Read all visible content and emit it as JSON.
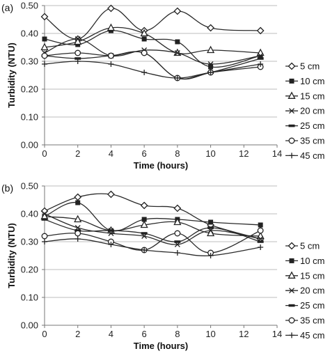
{
  "chart_data": [
    {
      "type": "line",
      "panel_label": "(a)",
      "xlabel": "Time (hours)",
      "ylabel": "Turbidity  (NTU)",
      "xlim": [
        0,
        14
      ],
      "ylim": [
        0,
        0.5
      ],
      "xticks": [
        "0",
        "2",
        "4",
        "6",
        "8",
        "10",
        "12",
        "14"
      ],
      "yticks": [
        "0.00",
        "0.10",
        "0.20",
        "0.30",
        "0.40",
        "0.50"
      ],
      "grid": "horizontal",
      "legend_position": "right",
      "x": [
        0,
        2,
        4,
        6,
        8,
        10,
        13
      ],
      "series": [
        {
          "name": "5 cm",
          "marker": "diamond-open",
          "values": [
            0.46,
            0.38,
            0.49,
            0.41,
            0.48,
            0.42,
            0.41
          ]
        },
        {
          "name": "10 cm",
          "marker": "square",
          "values": [
            0.38,
            0.36,
            0.41,
            0.38,
            0.37,
            0.28,
            0.32
          ]
        },
        {
          "name": "15 cm",
          "marker": "triangle-open",
          "values": [
            0.35,
            0.37,
            0.42,
            0.4,
            0.33,
            0.34,
            0.33
          ]
        },
        {
          "name": "20 cm",
          "marker": "x",
          "values": [
            0.33,
            0.38,
            0.32,
            0.34,
            0.33,
            0.29,
            0.32
          ]
        },
        {
          "name": "25 cm",
          "marker": "dash",
          "values": [
            0.32,
            0.31,
            0.32,
            0.33,
            0.24,
            0.26,
            0.31
          ]
        },
        {
          "name": "35 cm",
          "marker": "circle-open",
          "values": [
            0.32,
            0.33,
            0.32,
            0.33,
            0.24,
            0.26,
            0.28
          ]
        },
        {
          "name": "45 cm",
          "marker": "plus",
          "values": [
            0.29,
            0.3,
            0.29,
            0.26,
            0.24,
            0.26,
            0.29
          ]
        }
      ]
    },
    {
      "type": "line",
      "panel_label": "(b)",
      "xlabel": "Time (hours)",
      "ylabel": "Turbidity  (NTU)",
      "xlim": [
        0,
        14
      ],
      "ylim": [
        0,
        0.5
      ],
      "xticks": [
        "0",
        "2",
        "4",
        "6",
        "8",
        "10",
        "12",
        "14"
      ],
      "yticks": [
        "0.00",
        "0.10",
        "0.20",
        "0.30",
        "0.40",
        "0.50"
      ],
      "grid": "horizontal",
      "legend_position": "right",
      "x": [
        0,
        2,
        4,
        6,
        8,
        10,
        13
      ],
      "series": [
        {
          "name": "5 cm",
          "marker": "diamond-open",
          "values": [
            0.41,
            0.46,
            0.47,
            0.43,
            0.42,
            0.36,
            0.31
          ]
        },
        {
          "name": "10 cm",
          "marker": "square",
          "values": [
            0.39,
            0.44,
            0.34,
            0.38,
            0.38,
            0.37,
            0.36
          ]
        },
        {
          "name": "15 cm",
          "marker": "triangle-open",
          "values": [
            0.39,
            0.38,
            0.34,
            0.36,
            0.37,
            0.33,
            0.32
          ]
        },
        {
          "name": "20 cm",
          "marker": "x",
          "values": [
            0.4,
            0.35,
            0.33,
            0.32,
            0.29,
            0.34,
            0.31
          ]
        },
        {
          "name": "25 cm",
          "marker": "dash",
          "values": [
            0.38,
            0.34,
            0.34,
            0.33,
            0.3,
            0.35,
            0.3
          ]
        },
        {
          "name": "35 cm",
          "marker": "circle-open",
          "values": [
            0.32,
            0.33,
            0.3,
            0.27,
            0.33,
            0.26,
            0.34
          ]
        },
        {
          "name": "45 cm",
          "marker": "plus",
          "values": [
            0.3,
            0.31,
            0.29,
            0.27,
            0.26,
            0.25,
            0.28
          ]
        }
      ]
    }
  ]
}
